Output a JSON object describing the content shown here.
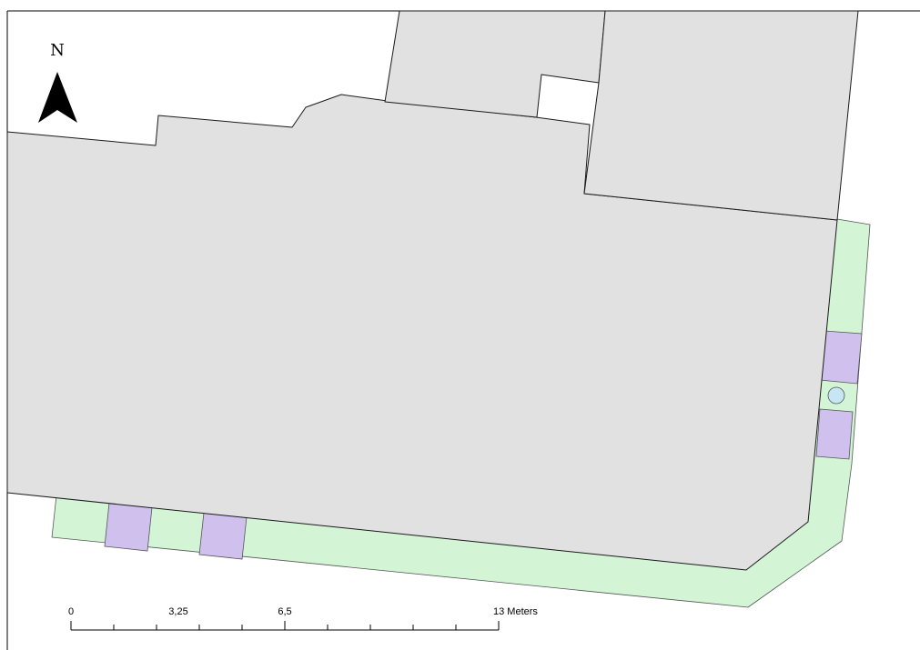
{
  "north_arrow": {
    "letter": "N",
    "icon": "north-arrow-icon",
    "color": "#000000"
  },
  "scale_bar": {
    "labels": [
      "0",
      "3,25",
      "6,5",
      "13 Meters"
    ],
    "color": "#000000"
  },
  "legend_colors": {
    "building": "#e1e1e1",
    "green_strip": "#d3f5d6",
    "purple_tile": "#cfc0ee",
    "pole_marker": "#c6e6f3"
  }
}
